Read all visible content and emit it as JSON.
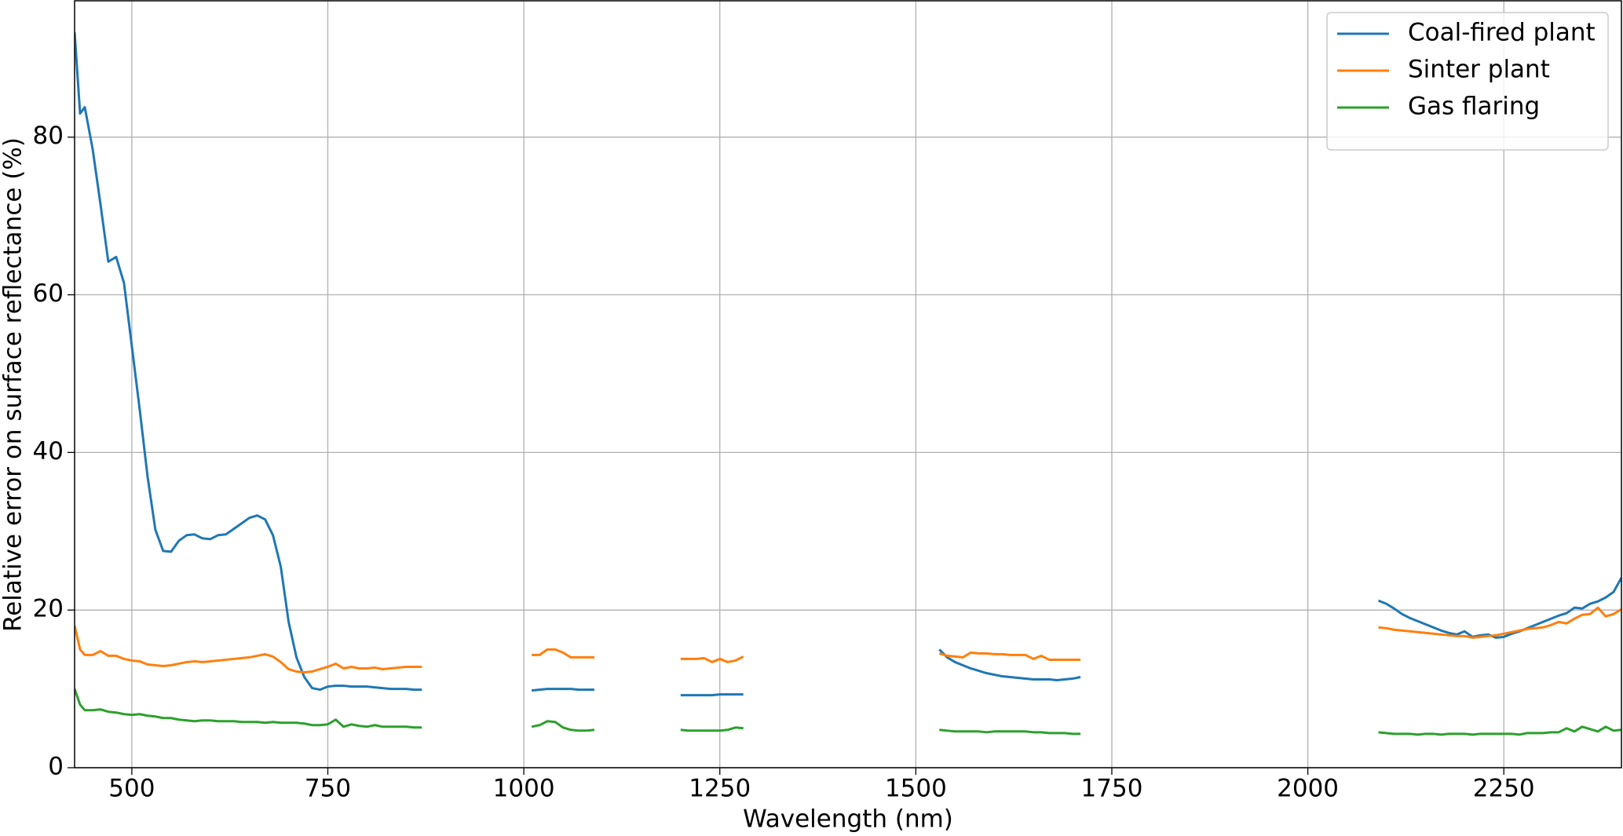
{
  "chart_data": {
    "type": "line",
    "xlabel": "Wavelength (nm)",
    "ylabel": "Relative error on surface reflectance (%)",
    "x": [
      427,
      434,
      440,
      450,
      460,
      470,
      480,
      490,
      500,
      510,
      520,
      530,
      540,
      550,
      560,
      570,
      580,
      590,
      600,
      610,
      620,
      630,
      640,
      650,
      660,
      670,
      680,
      690,
      700,
      710,
      720,
      730,
      740,
      750,
      760,
      770,
      780,
      790,
      800,
      810,
      820,
      830,
      840,
      850,
      860,
      870,
      940,
      1010,
      1020,
      1030,
      1040,
      1050,
      1060,
      1070,
      1080,
      1090,
      1145,
      1200,
      1210,
      1220,
      1230,
      1240,
      1250,
      1260,
      1270,
      1280,
      1400,
      1530,
      1540,
      1550,
      1560,
      1570,
      1580,
      1590,
      1600,
      1610,
      1620,
      1630,
      1640,
      1650,
      1660,
      1670,
      1680,
      1690,
      1700,
      1710,
      1900,
      2090,
      2100,
      2110,
      2120,
      2130,
      2140,
      2150,
      2160,
      2170,
      2180,
      2190,
      2200,
      2210,
      2220,
      2230,
      2240,
      2250,
      2260,
      2270,
      2280,
      2290,
      2300,
      2310,
      2320,
      2330,
      2340,
      2350,
      2360,
      2370,
      2380,
      2390,
      2400
    ],
    "series": [
      {
        "name": "Coal-fired plant",
        "color": "#1f77b4",
        "values": [
          93.3,
          83,
          83.8,
          78.5,
          71.5,
          64.2,
          64.8,
          61.5,
          53.5,
          45.5,
          37,
          30.2,
          27.5,
          27.4,
          28.8,
          29.5,
          29.6,
          29.1,
          29,
          29.5,
          29.6,
          30.3,
          31,
          31.7,
          32,
          31.5,
          29.5,
          25.5,
          18.5,
          14,
          11.5,
          10.1,
          9.9,
          10.3,
          10.4,
          10.4,
          10.3,
          10.3,
          10.3,
          10.2,
          10.1,
          10,
          10,
          10,
          9.9,
          9.9,
          null,
          9.8,
          9.9,
          10,
          10,
          10,
          10,
          9.9,
          9.9,
          9.9,
          null,
          9.2,
          9.2,
          9.2,
          9.2,
          9.2,
          9.3,
          9.3,
          9.3,
          9.3,
          null,
          15,
          14,
          13.4,
          13,
          12.6,
          12.3,
          12,
          11.8,
          11.6,
          11.5,
          11.4,
          11.3,
          11.2,
          11.2,
          11.2,
          11.1,
          11.2,
          11.3,
          11.5,
          null,
          21.2,
          20.8,
          20.2,
          19.5,
          19,
          18.6,
          18.2,
          17.8,
          17.4,
          17.1,
          16.9,
          17.3,
          16.6,
          16.8,
          16.9,
          16.5,
          16.6,
          17,
          17.3,
          17.7,
          18.1,
          18.5,
          18.9,
          19.3,
          19.6,
          20.3,
          20.2,
          20.8,
          21.1,
          21.6,
          22.3,
          24.1
        ]
      },
      {
        "name": "Sinter plant",
        "color": "#ff7f0e",
        "values": [
          18,
          15,
          14.3,
          14.3,
          14.8,
          14.2,
          14.2,
          13.8,
          13.6,
          13.5,
          13.1,
          13,
          12.9,
          13,
          13.2,
          13.4,
          13.5,
          13.4,
          13.5,
          13.6,
          13.7,
          13.8,
          13.9,
          14,
          14.2,
          14.4,
          14.1,
          13.4,
          12.5,
          12.2,
          12.1,
          12.2,
          12.5,
          12.8,
          13.2,
          12.6,
          12.8,
          12.6,
          12.6,
          12.7,
          12.5,
          12.6,
          12.7,
          12.8,
          12.8,
          12.8,
          null,
          14.3,
          14.3,
          15,
          15,
          14.6,
          14,
          14,
          14,
          14,
          null,
          13.8,
          13.8,
          13.8,
          13.9,
          13.4,
          13.8,
          13.4,
          13.6,
          14.1,
          null,
          14.5,
          14.2,
          14.1,
          14,
          14.6,
          14.5,
          14.5,
          14.4,
          14.4,
          14.3,
          14.3,
          14.3,
          13.8,
          14.2,
          13.7,
          13.7,
          13.7,
          13.7,
          13.7,
          null,
          17.8,
          17.7,
          17.5,
          17.4,
          17.3,
          17.2,
          17.1,
          17,
          16.9,
          16.8,
          16.7,
          16.7,
          16.5,
          16.6,
          16.7,
          16.8,
          17,
          17.2,
          17.4,
          17.6,
          17.7,
          17.8,
          18.1,
          18.5,
          18.3,
          18.9,
          19.4,
          19.5,
          20.3,
          19.2,
          19.5,
          20.1
        ]
      },
      {
        "name": "Gas flaring",
        "color": "#2ca02c",
        "values": [
          10,
          8,
          7.3,
          7.3,
          7.4,
          7.1,
          7,
          6.8,
          6.7,
          6.8,
          6.6,
          6.5,
          6.3,
          6.3,
          6.1,
          6,
          5.9,
          6,
          6,
          5.9,
          5.9,
          5.9,
          5.8,
          5.8,
          5.8,
          5.7,
          5.8,
          5.7,
          5.7,
          5.7,
          5.6,
          5.4,
          5.4,
          5.5,
          6.1,
          5.2,
          5.5,
          5.3,
          5.2,
          5.4,
          5.2,
          5.2,
          5.2,
          5.2,
          5.1,
          5.1,
          null,
          5.2,
          5.4,
          5.9,
          5.8,
          5.1,
          4.8,
          4.7,
          4.7,
          4.8,
          null,
          4.8,
          4.7,
          4.7,
          4.7,
          4.7,
          4.7,
          4.8,
          5.1,
          5,
          null,
          4.8,
          4.7,
          4.6,
          4.6,
          4.6,
          4.6,
          4.5,
          4.6,
          4.6,
          4.6,
          4.6,
          4.6,
          4.5,
          4.5,
          4.4,
          4.4,
          4.4,
          4.3,
          4.3,
          null,
          4.5,
          4.4,
          4.3,
          4.3,
          4.3,
          4.2,
          4.3,
          4.3,
          4.2,
          4.3,
          4.3,
          4.3,
          4.2,
          4.3,
          4.3,
          4.3,
          4.3,
          4.3,
          4.2,
          4.4,
          4.4,
          4.4,
          4.5,
          4.5,
          5,
          4.6,
          5.2,
          4.9,
          4.6,
          5.2,
          4.7,
          4.8
        ]
      }
    ],
    "xlim": [
      427,
      2400
    ],
    "ylim": [
      0,
      97.3
    ],
    "xticks": [
      500,
      750,
      1000,
      1250,
      1500,
      1750,
      2000,
      2250
    ],
    "yticks": [
      0,
      20,
      40,
      60,
      80
    ],
    "grid": true,
    "legend": "upper right"
  }
}
